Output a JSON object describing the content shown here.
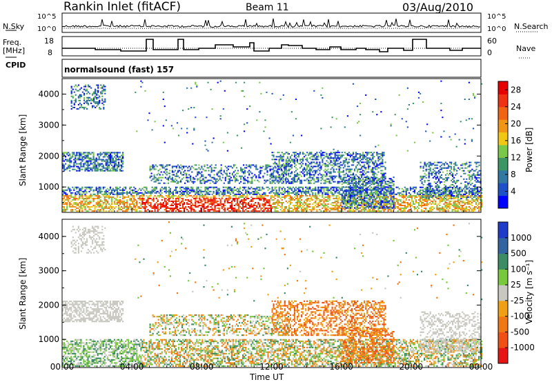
{
  "header": {
    "station": "Rankin Inlet (fitACF)",
    "beam": "Beam 11",
    "date": "03/Aug/2010"
  },
  "top_panel": {
    "left_label": "N.Sky",
    "right_label": "N.Search",
    "left_ticks": [
      "10^5",
      "10^0"
    ],
    "right_ticks": [
      "10^5",
      "10^0"
    ]
  },
  "freq_panel": {
    "left_label_line1": "Freq.",
    "left_label_line2": "[MHz]",
    "right_label": "Nave",
    "left_ticks": [
      "18",
      "8"
    ],
    "right_ticks": [
      "60",
      "0"
    ]
  },
  "cpid": {
    "label": "CPID",
    "text": "normalsound (fast) 157"
  },
  "chart_data": [
    {
      "type": "heatmap",
      "name": "power",
      "ylabel": "Slant Range [km]",
      "yticks": [
        1000,
        2000,
        3000,
        4000
      ],
      "ylim": [
        180,
        4500
      ],
      "xlim": [
        0,
        24
      ],
      "colorbar": {
        "label": "Power [dB]",
        "ticks": [
          "4",
          "8",
          "12",
          "16",
          "20",
          "24",
          "28"
        ],
        "colors": [
          "#0000ff",
          "#1e50c8",
          "#3278a0",
          "#3c9664",
          "#7ac84a",
          "#f0c814",
          "#f09614",
          "#f06414",
          "#f03214",
          "#e60000"
        ]
      }
    },
    {
      "type": "heatmap",
      "name": "velocity",
      "ylabel": "Slant Range [km]",
      "yticks": [
        1000,
        2000,
        3000,
        4000
      ],
      "ylim": [
        180,
        4500
      ],
      "xlim": [
        0,
        24
      ],
      "colorbar": {
        "label": "Velocity [m s⁻¹]",
        "ticks": [
          "1000",
          "500",
          "100",
          "25",
          "-25",
          "-100",
          "-500",
          "-1000"
        ],
        "colors": [
          "#1e3cc8",
          "#3264a0",
          "#3c8c64",
          "#78c83c",
          "#c8c8c0",
          "#f0a014",
          "#f07814",
          "#f05014",
          "#e61414"
        ]
      }
    }
  ],
  "x_axis": {
    "label": "Time UT",
    "ticks": [
      "00:00",
      "04:00",
      "08:00",
      "12:00",
      "16:00",
      "20:00",
      "00:00"
    ]
  }
}
